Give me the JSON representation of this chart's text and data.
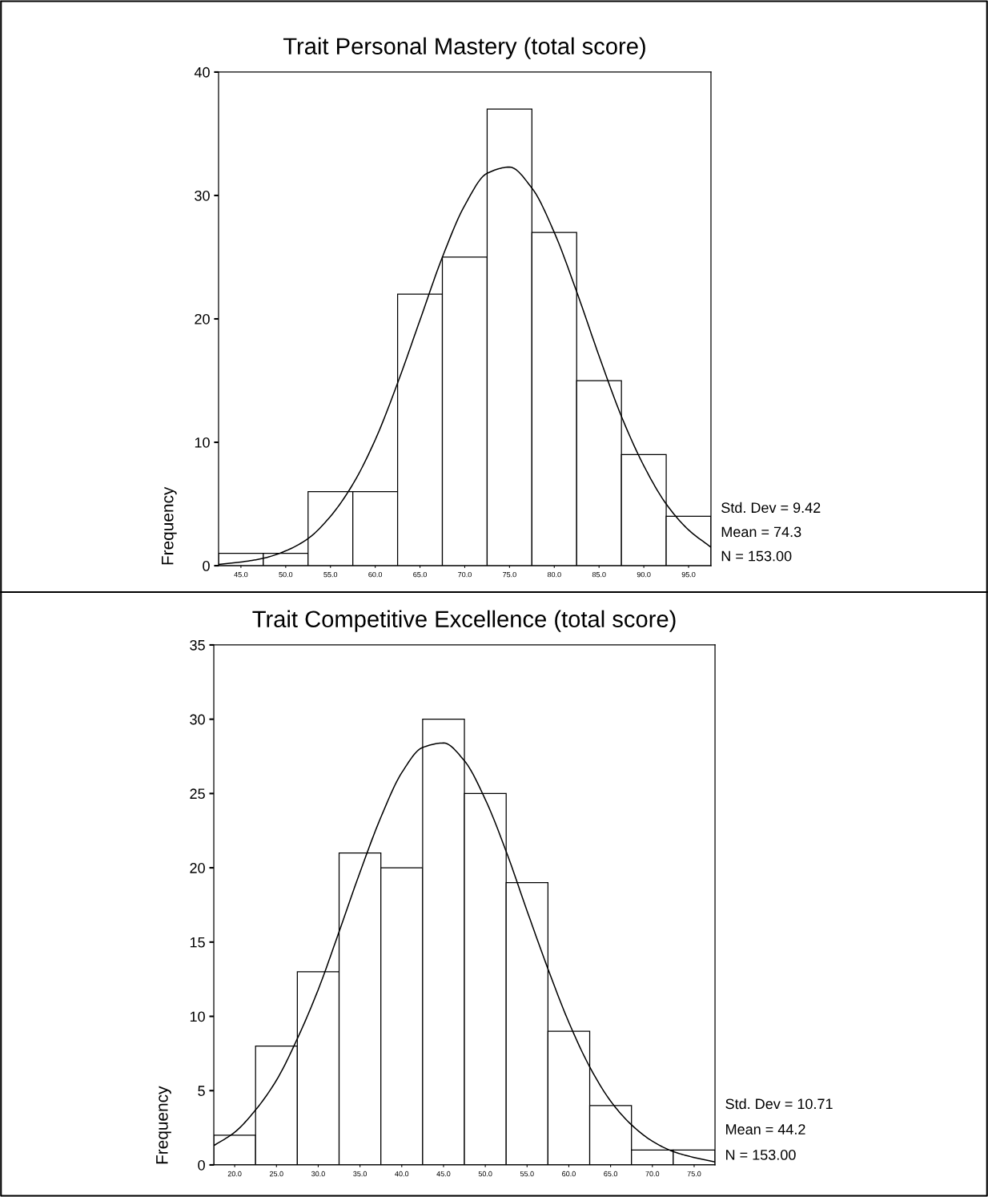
{
  "chart_data": [
    {
      "type": "histogram",
      "title": "Trait Personal Mastery (total score)",
      "ylabel": "Frequency",
      "color": "#ffffff",
      "grid": false,
      "bins": [
        42.5,
        47.5,
        52.5,
        57.5,
        62.5,
        67.5,
        72.5,
        77.5,
        82.5,
        87.5,
        92.5,
        97.5
      ],
      "values": [
        1,
        1,
        6,
        6,
        22,
        25,
        37,
        27,
        15,
        9,
        4
      ],
      "series": [
        {
          "type": "line",
          "color": "#000000",
          "x": [
            42.5,
            45,
            47.5,
            50,
            52.5,
            55,
            57.5,
            60,
            62.5,
            65,
            67.5,
            70,
            72.5,
            75,
            77.5,
            80,
            82.5,
            85,
            87.5,
            90,
            92.5,
            95,
            97.5
          ],
          "values": [
            0.1,
            0.3,
            0.6,
            1.2,
            2.2,
            4.0,
            6.6,
            10.2,
            14.8,
            19.9,
            25.0,
            29.2,
            31.8,
            32.3,
            30.6,
            27.0,
            22.2,
            17.0,
            12.1,
            8.1,
            5.0,
            2.9,
            1.5
          ]
        }
      ],
      "xlim": [
        42.5,
        97.5
      ],
      "xticks": [
        {
          "value": 45,
          "label": "45.0"
        },
        {
          "value": 50,
          "label": "50.0"
        },
        {
          "value": 55,
          "label": "55.0"
        },
        {
          "value": 60,
          "label": "60.0"
        },
        {
          "value": 65,
          "label": "65.0"
        },
        {
          "value": 70,
          "label": "70.0"
        },
        {
          "value": 75,
          "label": "75.0"
        },
        {
          "value": 80,
          "label": "80.0"
        },
        {
          "value": 85,
          "label": "85.0"
        },
        {
          "value": 90,
          "label": "90.0"
        },
        {
          "value": 95,
          "label": "95.0"
        }
      ],
      "ylim": [
        0,
        40
      ],
      "yticks": [
        0,
        10,
        20,
        30,
        40
      ],
      "annotations": [
        "Std. Dev = 9.42",
        "Mean = 74.3",
        "N = 153.00"
      ]
    },
    {
      "type": "histogram",
      "title": "Trait Competitive Excellence (total score)",
      "ylabel": "Frequency",
      "color": "#ffffff",
      "grid": false,
      "bins": [
        17.5,
        22.5,
        27.5,
        32.5,
        37.5,
        42.5,
        47.5,
        52.5,
        57.5,
        62.5,
        67.5,
        72.5,
        77.5
      ],
      "values": [
        2,
        8,
        13,
        21,
        20,
        30,
        25,
        19,
        9,
        4,
        1,
        1
      ],
      "series": [
        {
          "type": "line",
          "color": "#000000",
          "x": [
            17.5,
            20,
            22.5,
            25,
            27.5,
            30,
            32.5,
            35,
            37.5,
            40,
            42.5,
            45,
            47.5,
            50,
            52.5,
            55,
            57.5,
            60,
            62.5,
            65,
            67.5,
            70,
            72.5,
            75,
            77.5
          ],
          "values": [
            1.3,
            2.2,
            3.7,
            5.7,
            8.5,
            11.8,
            15.7,
            19.7,
            23.4,
            26.4,
            28.1,
            28.4,
            27.2,
            24.6,
            21.1,
            17.1,
            13.2,
            9.6,
            6.6,
            4.3,
            2.7,
            1.6,
            0.9,
            0.5,
            0.2
          ]
        }
      ],
      "xlim": [
        17.5,
        77.5
      ],
      "xticks": [
        {
          "value": 20,
          "label": "20.0"
        },
        {
          "value": 25,
          "label": "25.0"
        },
        {
          "value": 30,
          "label": "30.0"
        },
        {
          "value": 35,
          "label": "35.0"
        },
        {
          "value": 40,
          "label": "40.0"
        },
        {
          "value": 45,
          "label": "45.0"
        },
        {
          "value": 50,
          "label": "50.0"
        },
        {
          "value": 55,
          "label": "55.0"
        },
        {
          "value": 60,
          "label": "60.0"
        },
        {
          "value": 65,
          "label": "65.0"
        },
        {
          "value": 70,
          "label": "70.0"
        },
        {
          "value": 75,
          "label": "75.0"
        }
      ],
      "ylim": [
        0,
        35
      ],
      "yticks": [
        0,
        5,
        10,
        15,
        20,
        25,
        30,
        35
      ],
      "annotations": [
        "Std. Dev = 10.71",
        "Mean = 44.2",
        "N = 153.00"
      ]
    }
  ]
}
